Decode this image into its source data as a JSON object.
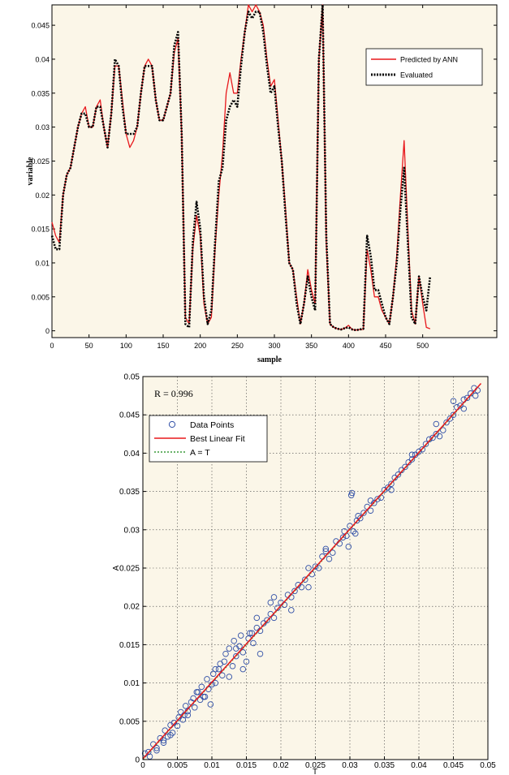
{
  "colors": {
    "plot_background": "#fbf6e8",
    "predicted_line": "#e8181c",
    "evaluated_line": "#000000",
    "data_points": "#2f4ea6",
    "best_fit_line": "#e8181c",
    "identity_line": "#3a9a3a",
    "grid": "#444444"
  },
  "chart_data": [
    {
      "type": "line",
      "title": "",
      "xlabel": "sample",
      "ylabel": "variable",
      "xlim": [
        0,
        600
      ],
      "ylim": [
        -0.001,
        0.048
      ],
      "xticks": [
        0,
        50,
        100,
        150,
        200,
        250,
        300,
        350,
        400,
        450,
        500
      ],
      "yticks": [
        0,
        0.005,
        0.01,
        0.015,
        0.02,
        0.025,
        0.03,
        0.035,
        0.04,
        0.045
      ],
      "ytick_labels": [
        "0",
        "0.005",
        "0.01",
        "0.015",
        "0.02",
        "0.025",
        "0.03",
        "0.035",
        "0.04",
        "0.045"
      ],
      "grid": false,
      "legend_position": "top-right",
      "legend": [
        "Predicted by ANN",
        "Evaluated"
      ],
      "x": [
        0,
        5,
        10,
        15,
        20,
        25,
        30,
        35,
        40,
        45,
        50,
        55,
        60,
        65,
        70,
        75,
        80,
        85,
        90,
        95,
        100,
        105,
        110,
        115,
        120,
        125,
        130,
        135,
        140,
        145,
        150,
        155,
        160,
        165,
        170,
        175,
        180,
        185,
        190,
        195,
        200,
        205,
        210,
        215,
        220,
        225,
        230,
        235,
        240,
        245,
        250,
        255,
        260,
        265,
        270,
        275,
        280,
        285,
        290,
        295,
        300,
        305,
        310,
        315,
        320,
        325,
        330,
        335,
        340,
        345,
        350,
        355,
        360,
        365,
        370,
        375,
        380,
        385,
        390,
        395,
        400,
        405,
        410,
        415,
        420,
        425,
        430,
        435,
        440,
        445,
        450,
        455,
        460,
        465,
        470,
        475,
        480,
        485,
        490,
        495,
        500,
        505,
        510
      ],
      "series": [
        {
          "name": "Predicted by ANN",
          "values": [
            0.016,
            0.014,
            0.013,
            0.02,
            0.023,
            0.024,
            0.027,
            0.03,
            0.032,
            0.033,
            0.03,
            0.03,
            0.033,
            0.034,
            0.03,
            0.027,
            0.032,
            0.039,
            0.039,
            0.034,
            0.029,
            0.027,
            0.028,
            0.03,
            0.035,
            0.039,
            0.04,
            0.039,
            0.034,
            0.031,
            0.031,
            0.033,
            0.035,
            0.041,
            0.043,
            0.029,
            0.002,
            0.001,
            0.012,
            0.017,
            0.014,
            0.004,
            0.001,
            0.002,
            0.012,
            0.02,
            0.026,
            0.035,
            0.038,
            0.035,
            0.035,
            0.04,
            0.044,
            0.048,
            0.047,
            0.048,
            0.047,
            0.045,
            0.04,
            0.036,
            0.037,
            0.031,
            0.025,
            0.018,
            0.01,
            0.009,
            0.005,
            0.001,
            0.004,
            0.009,
            0.006,
            0.004,
            0.04,
            0.048,
            0.013,
            0.001,
            0.0005,
            0.0003,
            0.0002,
            0.0004,
            0.0008,
            0.0002,
            0.0001,
            0.0002,
            0.0002,
            0.012,
            0.009,
            0.005,
            0.005,
            0.003,
            0.002,
            0.001,
            0.005,
            0.011,
            0.02,
            0.028,
            0.015,
            0.003,
            0.001,
            0.008,
            0.004,
            0.0005,
            0.0003
          ]
        },
        {
          "name": "Evaluated",
          "values": [
            0.014,
            0.012,
            0.012,
            0.02,
            0.023,
            0.024,
            0.027,
            0.03,
            0.032,
            0.032,
            0.03,
            0.03,
            0.033,
            0.033,
            0.03,
            0.027,
            0.032,
            0.04,
            0.039,
            0.033,
            0.029,
            0.029,
            0.029,
            0.03,
            0.035,
            0.039,
            0.039,
            0.039,
            0.034,
            0.031,
            0.031,
            0.033,
            0.035,
            0.042,
            0.044,
            0.029,
            0.001,
            0.0005,
            0.013,
            0.019,
            0.015,
            0.005,
            0.001,
            0.003,
            0.013,
            0.022,
            0.024,
            0.031,
            0.033,
            0.034,
            0.033,
            0.039,
            0.044,
            0.047,
            0.046,
            0.047,
            0.047,
            0.044,
            0.039,
            0.035,
            0.036,
            0.03,
            0.025,
            0.017,
            0.01,
            0.009,
            0.004,
            0.001,
            0.004,
            0.008,
            0.005,
            0.003,
            0.04,
            0.048,
            0.014,
            0.001,
            0.0005,
            0.0003,
            0.0002,
            0.0004,
            0.0005,
            0.0002,
            0.0001,
            0.0002,
            0.0003,
            0.014,
            0.011,
            0.006,
            0.006,
            0.004,
            0.002,
            0.001,
            0.005,
            0.01,
            0.018,
            0.024,
            0.013,
            0.002,
            0.001,
            0.008,
            0.005,
            0.003,
            0.008
          ]
        }
      ]
    },
    {
      "type": "scatter",
      "title": "",
      "annotation": "R = 0.996",
      "xlabel": "T",
      "ylabel": "A",
      "xlim": [
        0,
        0.05
      ],
      "ylim": [
        0,
        0.05
      ],
      "xticks": [
        0,
        0.005,
        0.01,
        0.015,
        0.02,
        0.025,
        0.03,
        0.035,
        0.04,
        0.045,
        0.05
      ],
      "xtick_labels": [
        "0",
        "0.005",
        "0.01",
        "0.015",
        "0.02",
        "0.025",
        "0.03",
        "0.035",
        "0.04",
        "0.045",
        "0.05"
      ],
      "yticks": [
        0,
        0.005,
        0.01,
        0.015,
        0.02,
        0.025,
        0.03,
        0.035,
        0.04,
        0.045,
        0.05
      ],
      "ytick_labels": [
        "0",
        "0.005",
        "0.01",
        "0.015",
        "0.02",
        "0.025",
        "0.03",
        "0.035",
        "0.04",
        "0.045",
        "0.05"
      ],
      "grid": true,
      "legend_position": "top-left",
      "legend": [
        "Data Points",
        "Best Linear Fit",
        "A = T"
      ],
      "best_fit": {
        "slope": 1.0,
        "intercept": 0.0001
      },
      "points": {
        "x": [
          0.0003,
          0.0008,
          0.001,
          0.0015,
          0.002,
          0.0025,
          0.003,
          0.0032,
          0.0036,
          0.004,
          0.0043,
          0.0045,
          0.005,
          0.0052,
          0.0055,
          0.006,
          0.0062,
          0.0065,
          0.007,
          0.0073,
          0.0075,
          0.008,
          0.0083,
          0.0085,
          0.009,
          0.0093,
          0.0095,
          0.01,
          0.0102,
          0.0105,
          0.011,
          0.0112,
          0.0115,
          0.012,
          0.0125,
          0.013,
          0.0132,
          0.0135,
          0.014,
          0.0142,
          0.0145,
          0.015,
          0.0153,
          0.0155,
          0.016,
          0.0165,
          0.017,
          0.0175,
          0.018,
          0.0185,
          0.019,
          0.0195,
          0.02,
          0.0205,
          0.021,
          0.0215,
          0.022,
          0.0225,
          0.023,
          0.0235,
          0.024,
          0.0245,
          0.025,
          0.0255,
          0.026,
          0.0265,
          0.027,
          0.0275,
          0.028,
          0.0285,
          0.029,
          0.0292,
          0.0295,
          0.03,
          0.0302,
          0.0305,
          0.031,
          0.0312,
          0.0315,
          0.032,
          0.0325,
          0.033,
          0.0335,
          0.034,
          0.0345,
          0.035,
          0.0355,
          0.036,
          0.0365,
          0.037,
          0.0375,
          0.038,
          0.0385,
          0.039,
          0.0395,
          0.04,
          0.0405,
          0.041,
          0.0415,
          0.042,
          0.0425,
          0.043,
          0.0435,
          0.044,
          0.0445,
          0.045,
          0.0455,
          0.046,
          0.0465,
          0.047,
          0.0475,
          0.048,
          0.0482,
          0.0485,
          0.002,
          0.004,
          0.0065,
          0.0088,
          0.0105,
          0.0125,
          0.0135,
          0.0158,
          0.017,
          0.0185,
          0.0215,
          0.024,
          0.0265,
          0.0298,
          0.0303,
          0.0308,
          0.033,
          0.036,
          0.039,
          0.0425,
          0.045,
          0.0465,
          0.003,
          0.0058,
          0.0078,
          0.0098,
          0.0118,
          0.0145,
          0.0165,
          0.019
        ],
        "y": [
          0.0008,
          0.001,
          0.0004,
          0.002,
          0.0015,
          0.0028,
          0.0025,
          0.0038,
          0.003,
          0.0045,
          0.0035,
          0.0048,
          0.0044,
          0.0055,
          0.0062,
          0.0058,
          0.007,
          0.0063,
          0.0075,
          0.008,
          0.0068,
          0.0088,
          0.0078,
          0.0095,
          0.0082,
          0.0105,
          0.0092,
          0.0098,
          0.0112,
          0.01,
          0.0118,
          0.0125,
          0.011,
          0.0138,
          0.0145,
          0.0122,
          0.0155,
          0.0135,
          0.0148,
          0.0162,
          0.014,
          0.0128,
          0.0158,
          0.0165,
          0.0152,
          0.0172,
          0.0168,
          0.0178,
          0.0182,
          0.019,
          0.0185,
          0.0198,
          0.0205,
          0.0202,
          0.0215,
          0.0212,
          0.022,
          0.0228,
          0.0225,
          0.0235,
          0.025,
          0.0242,
          0.0252,
          0.025,
          0.0265,
          0.0275,
          0.0262,
          0.027,
          0.0285,
          0.0282,
          0.029,
          0.0298,
          0.0292,
          0.0305,
          0.0345,
          0.0298,
          0.0312,
          0.0318,
          0.0315,
          0.0322,
          0.033,
          0.0325,
          0.0335,
          0.034,
          0.0342,
          0.0352,
          0.0355,
          0.036,
          0.0368,
          0.0372,
          0.0378,
          0.0382,
          0.0388,
          0.0392,
          0.0398,
          0.0402,
          0.0405,
          0.0412,
          0.0418,
          0.042,
          0.0425,
          0.0422,
          0.043,
          0.044,
          0.0445,
          0.045,
          0.046,
          0.0462,
          0.047,
          0.0472,
          0.0478,
          0.0485,
          0.0475,
          0.0482,
          0.0012,
          0.0032,
          0.0058,
          0.0082,
          0.0118,
          0.0108,
          0.0145,
          0.0165,
          0.0138,
          0.0205,
          0.0195,
          0.0225,
          0.0272,
          0.0278,
          0.0348,
          0.0295,
          0.0338,
          0.0352,
          0.0398,
          0.0438,
          0.0468,
          0.0458,
          0.0022,
          0.0052,
          0.0088,
          0.0072,
          0.0128,
          0.0118,
          0.0185,
          0.0212
        ]
      }
    }
  ]
}
